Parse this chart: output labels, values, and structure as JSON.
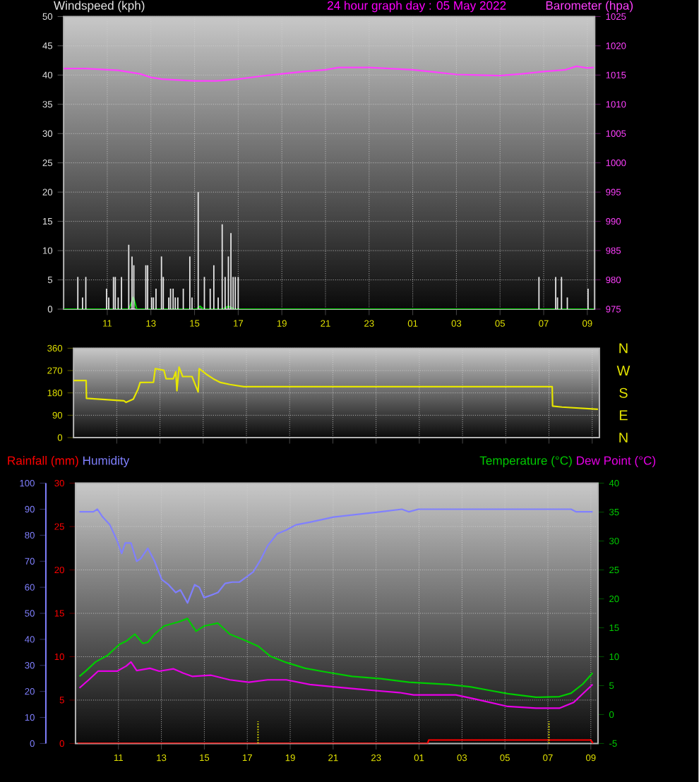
{
  "chart_data": [
    {
      "type": "bar",
      "title": "24 hour graph day : 05 May 2022",
      "xlim": [
        "2022-05-04T09:00",
        "2022-05-05T09:20"
      ],
      "xticks": [
        {
          "value": "2022-05-04T11:00",
          "label": "11"
        },
        {
          "value": "2022-05-04T13:00",
          "label": "13"
        },
        {
          "value": "2022-05-04T15:00",
          "label": "15"
        },
        {
          "value": "2022-05-04T17:00",
          "label": "17"
        },
        {
          "value": "2022-05-04T19:00",
          "label": "19"
        },
        {
          "value": "2022-05-04T21:00",
          "label": "21"
        },
        {
          "value": "2022-05-04T23:00",
          "label": "23"
        },
        {
          "value": "2022-05-05T01:00",
          "label": "01"
        },
        {
          "value": "2022-05-05T03:00",
          "label": "03"
        },
        {
          "value": "2022-05-05T05:00",
          "label": "05"
        },
        {
          "value": "2022-05-05T07:00",
          "label": "07"
        },
        {
          "value": "2022-05-05T09:00",
          "label": "09"
        }
      ],
      "ylim": [
        0,
        50
      ],
      "yticks": [
        0,
        5,
        10,
        15,
        20,
        25,
        30,
        35,
        40,
        45,
        50
      ],
      "y2lim": [
        975,
        1025
      ],
      "y2ticks": [
        975,
        980,
        985,
        990,
        995,
        1000,
        1005,
        1010,
        1015,
        1020,
        1025
      ],
      "grid": true,
      "series": [
        {
          "name": "Windspeed (kph)",
          "color": "#e6e6e6",
          "x": [
            "2022-05-04T09:39",
            "2022-05-04T09:52",
            "2022-05-04T10:01",
            "2022-05-04T10:58",
            "2022-05-04T11:04",
            "2022-05-04T11:17",
            "2022-05-04T11:22",
            "2022-05-04T11:30",
            "2022-05-04T11:39",
            "2022-05-04T11:59",
            "2022-05-04T12:08",
            "2022-05-04T12:13",
            "2022-05-04T12:46",
            "2022-05-04T12:51",
            "2022-05-04T13:02",
            "2022-05-04T13:07",
            "2022-05-04T13:14",
            "2022-05-04T13:29",
            "2022-05-04T13:34",
            "2022-05-04T13:49",
            "2022-05-04T13:54",
            "2022-05-04T14:01",
            "2022-05-04T14:07",
            "2022-05-04T14:14",
            "2022-05-04T14:29",
            "2022-05-04T14:47",
            "2022-05-04T14:53",
            "2022-05-04T15:10",
            "2022-05-04T15:27",
            "2022-05-04T15:43",
            "2022-05-04T15:53",
            "2022-05-04T16:05",
            "2022-05-04T16:16",
            "2022-05-04T16:24",
            "2022-05-04T16:33",
            "2022-05-04T16:40",
            "2022-05-04T16:46",
            "2022-05-04T16:52",
            "2022-05-04T17:00",
            "2022-05-05T06:47",
            "2022-05-05T07:33",
            "2022-05-05T07:38",
            "2022-05-05T07:49",
            "2022-05-05T08:05",
            "2022-05-05T09:02"
          ],
          "values": [
            5.5,
            2,
            5.5,
            3.5,
            2,
            5.5,
            5.5,
            2,
            5.5,
            11,
            9,
            7.5,
            7.5,
            7.5,
            2,
            2,
            3.5,
            9,
            5.5,
            2,
            3.5,
            3.5,
            2,
            2,
            3.5,
            9,
            2,
            20,
            5.5,
            3.5,
            7.5,
            2,
            14.5,
            5.5,
            9,
            13,
            5.5,
            5.5,
            5.5,
            5.5,
            5.5,
            2,
            5.5,
            2,
            3.5
          ]
        },
        {
          "type": "line",
          "color": "#00cc00",
          "x": [
            "2022-05-04T09:00",
            "2022-05-04T12:00",
            "2022-05-04T12:12",
            "2022-05-04T12:21",
            "2022-05-04T15:06",
            "2022-05-04T15:15",
            "2022-05-04T15:24",
            "2022-05-04T16:18",
            "2022-05-04T16:33",
            "2022-05-04T16:48",
            "2022-05-05T09:18"
          ],
          "values": [
            0,
            0,
            2,
            0,
            0,
            0.5,
            0,
            0,
            0.5,
            0,
            0
          ]
        },
        {
          "type": "line",
          "axis": "y2",
          "name": "Barometer (hpa)",
          "color": "#ff40ff",
          "x": [
            "2022-05-04T09:00",
            "2022-05-04T10:00",
            "2022-05-04T11:30",
            "2022-05-04T12:30",
            "2022-05-04T13:00",
            "2022-05-04T13:30",
            "2022-05-04T14:30",
            "2022-05-04T15:00",
            "2022-05-04T16:00",
            "2022-05-04T17:00",
            "2022-05-04T18:00",
            "2022-05-04T19:00",
            "2022-05-04T20:00",
            "2022-05-04T21:00",
            "2022-05-04T21:36",
            "2022-05-04T23:00",
            "2022-05-05T00:00",
            "2022-05-05T01:00",
            "2022-05-05T02:00",
            "2022-05-05T03:00",
            "2022-05-05T04:00",
            "2022-05-05T05:00",
            "2022-05-05T06:00",
            "2022-05-05T07:00",
            "2022-05-05T08:00",
            "2022-05-05T08:30",
            "2022-05-05T09:00",
            "2022-05-05T09:18"
          ],
          "values": [
            1016.1,
            1016.1,
            1015.8,
            1015.2,
            1014.6,
            1014.3,
            1014.1,
            1014.0,
            1014.0,
            1014.3,
            1014.8,
            1015.2,
            1015.6,
            1015.9,
            1016.3,
            1016.3,
            1016.1,
            1015.9,
            1015.5,
            1015.1,
            1015.0,
            1014.9,
            1015.2,
            1015.6,
            1015.9,
            1016.5,
            1016.2,
            1016.3
          ]
        }
      ]
    },
    {
      "type": "line",
      "xlim": [
        "2022-05-04T09:00",
        "2022-05-05T09:20"
      ],
      "xticks": [
        "2022-05-04T11:00",
        "2022-05-04T13:00",
        "2022-05-04T15:00",
        "2022-05-04T17:00",
        "2022-05-04T19:00",
        "2022-05-04T21:00",
        "2022-05-04T23:00",
        "2022-05-05T01:00",
        "2022-05-05T03:00",
        "2022-05-05T05:00",
        "2022-05-05T07:00",
        "2022-05-05T09:00"
      ],
      "ylim": [
        0,
        360
      ],
      "yticks": [
        0,
        90,
        180,
        270,
        360
      ],
      "grid": true,
      "tick_labels": "y",
      "annotations": [
        "N",
        "W",
        "S",
        "E",
        "N"
      ],
      "series": [
        {
          "color": "#e6e600",
          "x": [
            "2022-05-04T09:00",
            "2022-05-04T09:35",
            "2022-05-04T09:36",
            "2022-05-04T11:20",
            "2022-05-04T11:26",
            "2022-05-04T11:46",
            "2022-05-04T11:59",
            "2022-05-04T12:05",
            "2022-05-04T12:42",
            "2022-05-04T12:47",
            "2022-05-04T13:11",
            "2022-05-04T13:17",
            "2022-05-04T13:37",
            "2022-05-04T13:44",
            "2022-05-04T13:47",
            "2022-05-04T13:53",
            "2022-05-04T14:03",
            "2022-05-04T14:29",
            "2022-05-04T14:46",
            "2022-05-04T14:49",
            "2022-05-04T15:08",
            "2022-05-04T15:28",
            "2022-05-04T15:48",
            "2022-05-04T16:14",
            "2022-05-04T16:53",
            "2022-05-05T07:09",
            "2022-05-05T07:10",
            "2022-05-05T07:36",
            "2022-05-05T09:16"
          ],
          "values": [
            230,
            230,
            158,
            148,
            142,
            155,
            195,
            222,
            223,
            278,
            271,
            237,
            237,
            265,
            189,
            284,
            246,
            246,
            184,
            278,
            256,
            237,
            222,
            214,
            205,
            205,
            127,
            123,
            114
          ]
        }
      ]
    },
    {
      "type": "line",
      "xlim": [
        "2022-05-04T09:00",
        "2022-05-05T09:20"
      ],
      "xticks": [
        {
          "value": "2022-05-04T11:00",
          "label": "11"
        },
        {
          "value": "2022-05-04T13:00",
          "label": "13"
        },
        {
          "value": "2022-05-04T15:00",
          "label": "15"
        },
        {
          "value": "2022-05-04T17:00",
          "label": "17"
        },
        {
          "value": "2022-05-04T19:00",
          "label": "19"
        },
        {
          "value": "2022-05-04T21:00",
          "label": "21"
        },
        {
          "value": "2022-05-04T23:00",
          "label": "23"
        },
        {
          "value": "2022-05-05T01:00",
          "label": "01"
        },
        {
          "value": "2022-05-05T03:00",
          "label": "03"
        },
        {
          "value": "2022-05-05T05:00",
          "label": "05"
        },
        {
          "value": "2022-05-05T07:00",
          "label": "07"
        },
        {
          "value": "2022-05-05T09:00",
          "label": "09"
        }
      ],
      "ylim": [
        0,
        30
      ],
      "yticks": [
        0,
        5,
        10,
        15,
        20,
        25,
        30
      ],
      "y3lim": [
        0,
        100
      ],
      "y3ticks": [
        0,
        10,
        20,
        30,
        40,
        50,
        60,
        70,
        80,
        90,
        100
      ],
      "y2lim": [
        -5,
        40
      ],
      "y2ticks": [
        -5,
        0,
        5,
        10,
        15,
        20,
        25,
        30,
        35,
        40
      ],
      "grid": true,
      "ref_lines": [
        {
          "axis": "x",
          "value": "2022-05-04T17:30",
          "color": "#e6e600",
          "line_style": "dotted"
        },
        {
          "axis": "x",
          "value": "2022-05-05T07:03",
          "color": "#e6e600",
          "line_style": "dotted"
        }
      ],
      "series": [
        {
          "name": "Rainfall (mm)",
          "color": "#ff0000",
          "x": [
            "2022-05-04T09:06",
            "2022-05-05T01:24",
            "2022-05-05T01:27",
            "2022-05-05T09:00",
            "2022-05-05T09:06"
          ],
          "values": [
            0,
            0,
            0.4,
            0.4,
            0
          ]
        },
        {
          "name": "Humidity",
          "axis": "y3",
          "color": "#8080ff",
          "x": [
            "2022-05-04T09:11",
            "2022-05-04T09:50",
            "2022-05-04T10:01",
            "2022-05-04T10:16",
            "2022-05-04T10:36",
            "2022-05-04T10:56",
            "2022-05-04T11:09",
            "2022-05-04T11:19",
            "2022-05-04T11:35",
            "2022-05-04T11:51",
            "2022-05-04T12:02",
            "2022-05-04T12:22",
            "2022-05-04T12:41",
            "2022-05-04T13:01",
            "2022-05-04T13:20",
            "2022-05-04T13:40",
            "2022-05-04T13:53",
            "2022-05-04T14:13",
            "2022-05-04T14:33",
            "2022-05-04T14:46",
            "2022-05-04T14:59",
            "2022-05-04T15:19",
            "2022-05-04T15:38",
            "2022-05-04T15:58",
            "2022-05-04T16:18",
            "2022-05-04T16:38",
            "2022-05-04T16:58",
            "2022-05-04T17:17",
            "2022-05-04T17:37",
            "2022-05-04T17:57",
            "2022-05-04T18:23",
            "2022-05-04T18:49",
            "2022-05-04T19:16",
            "2022-05-04T19:55",
            "2022-05-04T21:01",
            "2022-05-04T22:07",
            "2022-05-04T23:13",
            "2022-05-05T00:12",
            "2022-05-05T00:32",
            "2022-05-05T00:58",
            "2022-05-05T03:36",
            "2022-05-05T06:53",
            "2022-05-05T08:05",
            "2022-05-05T08:19",
            "2022-05-05T09:05"
          ],
          "values": [
            89,
            89,
            90,
            87,
            84,
            78,
            73,
            77,
            77,
            70,
            71,
            75,
            70,
            63,
            61,
            58,
            59,
            54,
            61,
            60,
            56,
            57,
            58,
            61.5,
            62,
            62,
            64,
            66,
            70.5,
            76,
            80.5,
            82,
            84,
            85,
            87,
            88,
            89,
            90,
            89,
            90,
            90,
            90,
            90,
            89,
            89
          ]
        },
        {
          "name": "Temperature (°C)",
          "axis": "y2",
          "color": "#00cc00",
          "x": [
            "2022-05-04T09:11",
            "2022-05-04T09:30",
            "2022-05-04T09:56",
            "2022-05-04T10:29",
            "2022-05-04T11:02",
            "2022-05-04T11:22",
            "2022-05-04T11:46",
            "2022-05-04T12:08",
            "2022-05-04T12:22",
            "2022-05-04T12:41",
            "2022-05-04T13:07",
            "2022-05-04T13:47",
            "2022-05-04T14:13",
            "2022-05-04T14:37",
            "2022-05-04T14:59",
            "2022-05-04T15:38",
            "2022-05-04T16:11",
            "2022-05-04T16:51",
            "2022-05-04T17:31",
            "2022-05-04T18:04",
            "2022-05-04T18:49",
            "2022-05-04T19:42",
            "2022-05-04T20:35",
            "2022-05-04T21:53",
            "2022-05-04T23:13",
            "2022-05-05T00:32",
            "2022-05-05T02:23",
            "2022-05-05T03:23",
            "2022-05-05T04:15",
            "2022-05-05T05:08",
            "2022-05-05T06:27",
            "2022-05-05T07:32",
            "2022-05-05T08:05",
            "2022-05-05T08:38",
            "2022-05-05T09:05"
          ],
          "values": [
            6.6,
            7.6,
            9.1,
            10.2,
            12.1,
            12.7,
            13.9,
            12.3,
            12.5,
            13.9,
            15.3,
            16.0,
            16.6,
            14.4,
            15.3,
            15.8,
            13.9,
            12.9,
            11.8,
            10.1,
            9.0,
            8.0,
            7.4,
            6.6,
            6.2,
            5.6,
            5.2,
            4.8,
            4.2,
            3.6,
            3.0,
            3.1,
            3.7,
            5.3,
            7.2
          ]
        },
        {
          "name": "Dew Point (°C)",
          "axis": "y2",
          "color": "#e600e6",
          "x": [
            "2022-05-04T09:11",
            "2022-05-04T09:37",
            "2022-05-04T10:03",
            "2022-05-04T10:56",
            "2022-05-04T11:22",
            "2022-05-04T11:35",
            "2022-05-04T11:51",
            "2022-05-04T12:28",
            "2022-05-04T12:54",
            "2022-05-04T13:34",
            "2022-05-04T14:00",
            "2022-05-04T14:26",
            "2022-05-04T15:19",
            "2022-05-04T16:11",
            "2022-05-04T17:04",
            "2022-05-04T17:57",
            "2022-05-04T18:49",
            "2022-05-04T19:55",
            "2022-05-04T21:01",
            "2022-05-04T22:46",
            "2022-05-05T00:05",
            "2022-05-05T00:45",
            "2022-05-05T02:43",
            "2022-05-05T03:36",
            "2022-05-05T05:08",
            "2022-05-05T06:27",
            "2022-05-05T07:32",
            "2022-05-05T08:12",
            "2022-05-05T09:05"
          ],
          "values": [
            4.6,
            6.0,
            7.5,
            7.5,
            8.4,
            9.1,
            7.6,
            8.0,
            7.5,
            7.9,
            7.2,
            6.6,
            6.8,
            6.0,
            5.6,
            6.0,
            6.0,
            5.2,
            4.8,
            4.2,
            3.8,
            3.4,
            3.4,
            2.7,
            1.4,
            1.1,
            1.1,
            2.1,
            5.2
          ]
        }
      ]
    }
  ]
}
